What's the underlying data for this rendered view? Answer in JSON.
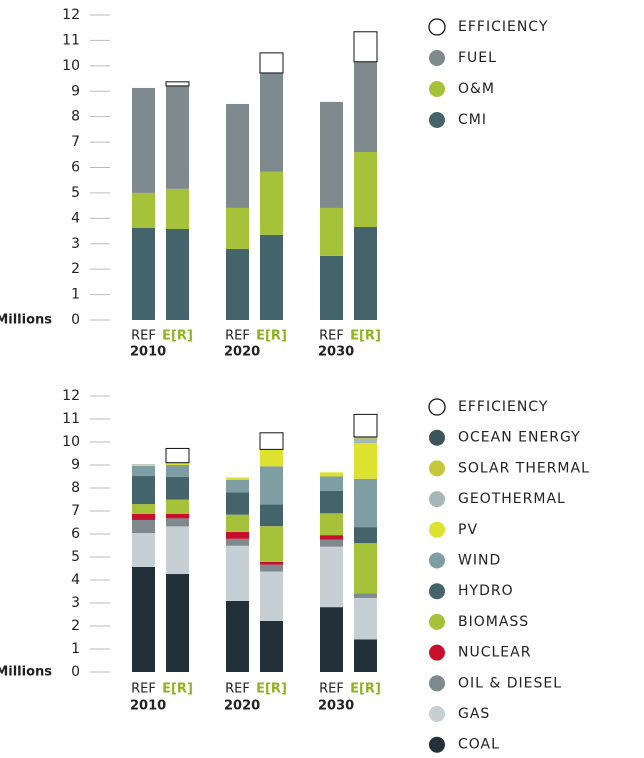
{
  "chart_data": [
    {
      "type": "stacked_bar",
      "ylabel": "Millions",
      "categories": [
        "REF",
        "E[R]",
        "REF",
        "E[R]",
        "REF",
        "E[R]"
      ],
      "groups": [
        "2010",
        "2020",
        "2030"
      ],
      "ylim": [
        0,
        12
      ],
      "yticks": [
        0,
        1,
        2,
        3,
        4,
        5,
        6,
        7,
        8,
        9,
        10,
        11,
        12
      ],
      "series": [
        {
          "name": "EFFICIENCY",
          "color": "#ffffff",
          "values": [
            0,
            0.16,
            0,
            0.79,
            0,
            1.18
          ]
        },
        {
          "name": "FUEL",
          "color": "#7f8a8e",
          "values": [
            4.13,
            4.05,
            4.09,
            3.89,
            4.17,
            3.55
          ]
        },
        {
          "name": "O&M",
          "color": "#a5c23a",
          "values": [
            1.38,
            1.58,
            1.61,
            2.48,
            1.89,
            2.95
          ]
        },
        {
          "name": "CMI",
          "color": "#45636a",
          "values": [
            3.62,
            3.58,
            2.8,
            3.35,
            2.52,
            3.66
          ]
        }
      ]
    },
    {
      "type": "stacked_bar",
      "ylabel": "Millions",
      "categories": [
        "REF",
        "E[R]",
        "REF",
        "E[R]",
        "REF",
        "E[R]"
      ],
      "groups": [
        "2010",
        "2020",
        "2030"
      ],
      "ylim": [
        0,
        12
      ],
      "yticks": [
        0,
        1,
        2,
        3,
        4,
        5,
        6,
        7,
        8,
        9,
        10,
        11,
        12
      ],
      "series": [
        {
          "name": "EFFICIENCY",
          "color": "#ffffff",
          "values": [
            0,
            0.62,
            0,
            0.72,
            0,
            0.98
          ]
        },
        {
          "name": "OCEAN ENERGY",
          "color": "#3e545c",
          "values": [
            0,
            0,
            0,
            0,
            0,
            0.02
          ]
        },
        {
          "name": "SOLAR THERMAL",
          "color": "#c4c83a",
          "values": [
            0,
            0,
            0,
            0,
            0,
            0.05
          ]
        },
        {
          "name": "GEOTHERMAL",
          "color": "#a8b8ba",
          "values": [
            0.03,
            0,
            0,
            0,
            0,
            0.2
          ]
        },
        {
          "name": "PV",
          "color": "#dde22f",
          "values": [
            0.05,
            0.1,
            0.1,
            0.74,
            0.18,
            1.55
          ]
        },
        {
          "name": "WIND",
          "color": "#7f9ea4",
          "values": [
            0.44,
            0.52,
            0.55,
            1.66,
            0.62,
            2.1
          ]
        },
        {
          "name": "HYDRO",
          "color": "#45636a",
          "values": [
            1.22,
            0.98,
            0.97,
            0.94,
            0.98,
            0.7
          ]
        },
        {
          "name": "BIOMASS",
          "color": "#a5c23a",
          "values": [
            0.43,
            0.62,
            0.75,
            1.55,
            0.95,
            2.18
          ]
        },
        {
          "name": "NUCLEAR",
          "color": "#c8102e",
          "values": [
            0.26,
            0.2,
            0.3,
            0.12,
            0.2,
            0
          ]
        },
        {
          "name": "OIL & DIESEL",
          "color": "#7f8a8e",
          "values": [
            0.57,
            0.35,
            0.3,
            0.3,
            0.3,
            0.2
          ]
        },
        {
          "name": "GAS",
          "color": "#c5cfd4",
          "values": [
            1.47,
            2.07,
            2.4,
            2.15,
            2.63,
            1.8
          ]
        },
        {
          "name": "COAL",
          "color": "#22303a",
          "values": [
            4.57,
            4.26,
            3.09,
            2.22,
            2.82,
            1.42
          ]
        }
      ]
    }
  ]
}
